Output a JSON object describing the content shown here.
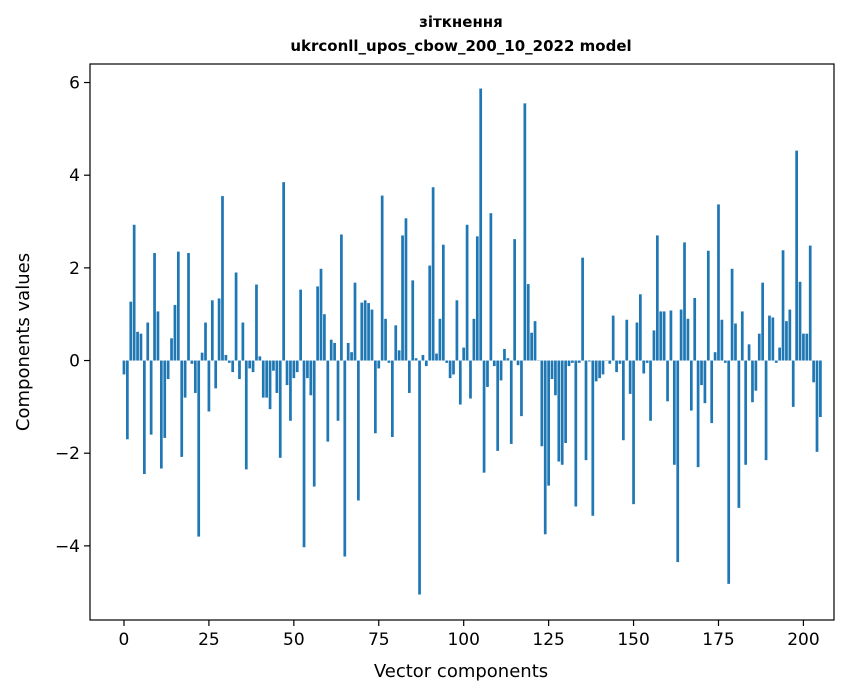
{
  "chart_data": {
    "type": "bar",
    "title": "зіткнення",
    "subtitle": "ukrconll_upos_cbow_200_10_2022 model",
    "xlabel": "Vector components",
    "ylabel": "Components values",
    "xlim": [
      -10,
      209
    ],
    "ylim": [
      -5.6,
      6.4
    ],
    "xticks": [
      0,
      25,
      50,
      75,
      100,
      125,
      150,
      175,
      200
    ],
    "yticks": [
      -4,
      -2,
      0,
      2,
      4,
      6
    ],
    "ytick_labels": [
      "−4",
      "−2",
      "0",
      "2",
      "4",
      "6"
    ],
    "bar_color": "#1f77b4",
    "values": [
      -0.3,
      -1.7,
      1.27,
      2.93,
      0.62,
      0.58,
      -2.45,
      0.82,
      -1.6,
      2.32,
      1.06,
      -2.33,
      -1.67,
      -0.4,
      0.48,
      1.2,
      2.35,
      -2.08,
      -0.8,
      2.32,
      -0.07,
      -0.7,
      -3.8,
      0.17,
      0.82,
      -1.1,
      1.3,
      -0.6,
      1.34,
      3.55,
      0.12,
      -0.05,
      -0.25,
      1.9,
      -0.4,
      0.82,
      -2.35,
      -0.17,
      -0.25,
      1.64,
      0.09,
      -0.8,
      -0.8,
      -1.05,
      -0.22,
      -0.7,
      -2.1,
      3.85,
      -0.53,
      -1.3,
      -0.38,
      -0.25,
      1.53,
      -4.03,
      -0.38,
      -0.75,
      -2.72,
      1.6,
      1.98,
      1.0,
      -1.75,
      0.45,
      0.38,
      -1.3,
      2.72,
      -4.23,
      0.38,
      0.18,
      1.68,
      -3.02,
      1.25,
      1.3,
      1.24,
      1.1,
      -1.57,
      -0.17,
      3.56,
      0.9,
      -0.05,
      -1.65,
      0.76,
      0.22,
      2.7,
      3.07,
      -0.7,
      1.73,
      0.05,
      -5.05,
      0.12,
      -0.12,
      2.05,
      3.74,
      0.15,
      0.9,
      2.5,
      -0.05,
      -0.38,
      -0.3,
      1.3,
      -0.95,
      0.28,
      2.93,
      -0.82,
      0.9,
      2.68,
      5.87,
      -2.42,
      -0.57,
      3.18,
      -0.12,
      -1.95,
      -0.43,
      0.25,
      0.05,
      -1.8,
      2.62,
      -0.1,
      -1.2,
      5.55,
      1.65,
      0.6,
      0.85,
      0.0,
      -1.85,
      -3.75,
      -2.7,
      -0.4,
      -0.75,
      -2.18,
      -2.25,
      -1.78,
      -0.12,
      -0.05,
      -3.15,
      -0.05,
      2.22,
      -2.15,
      -0.02,
      -3.35,
      -0.45,
      -0.38,
      -0.3,
      0.0,
      -0.07,
      0.97,
      -0.25,
      -0.07,
      -1.72,
      0.88,
      -0.72,
      -3.1,
      0.82,
      1.43,
      -0.28,
      -0.05,
      -1.3,
      0.65,
      2.7,
      1.06,
      1.06,
      -0.88,
      1.08,
      -2.25,
      -4.35,
      1.1,
      2.55,
      0.9,
      -1.08,
      1.35,
      -2.3,
      -0.53,
      -0.92,
      2.37,
      -1.35,
      0.18,
      3.37,
      0.88,
      -0.05,
      -4.82,
      1.98,
      0.8,
      -3.18,
      1.06,
      -2.25,
      0.35,
      -0.9,
      -0.65,
      0.58,
      1.68,
      -2.15,
      0.97,
      0.93,
      -0.05,
      0.28,
      2.38,
      0.85,
      1.1,
      -1.0,
      4.53,
      1.7,
      0.58,
      0.58,
      2.48,
      -0.47,
      -1.97,
      -1.22
    ]
  }
}
